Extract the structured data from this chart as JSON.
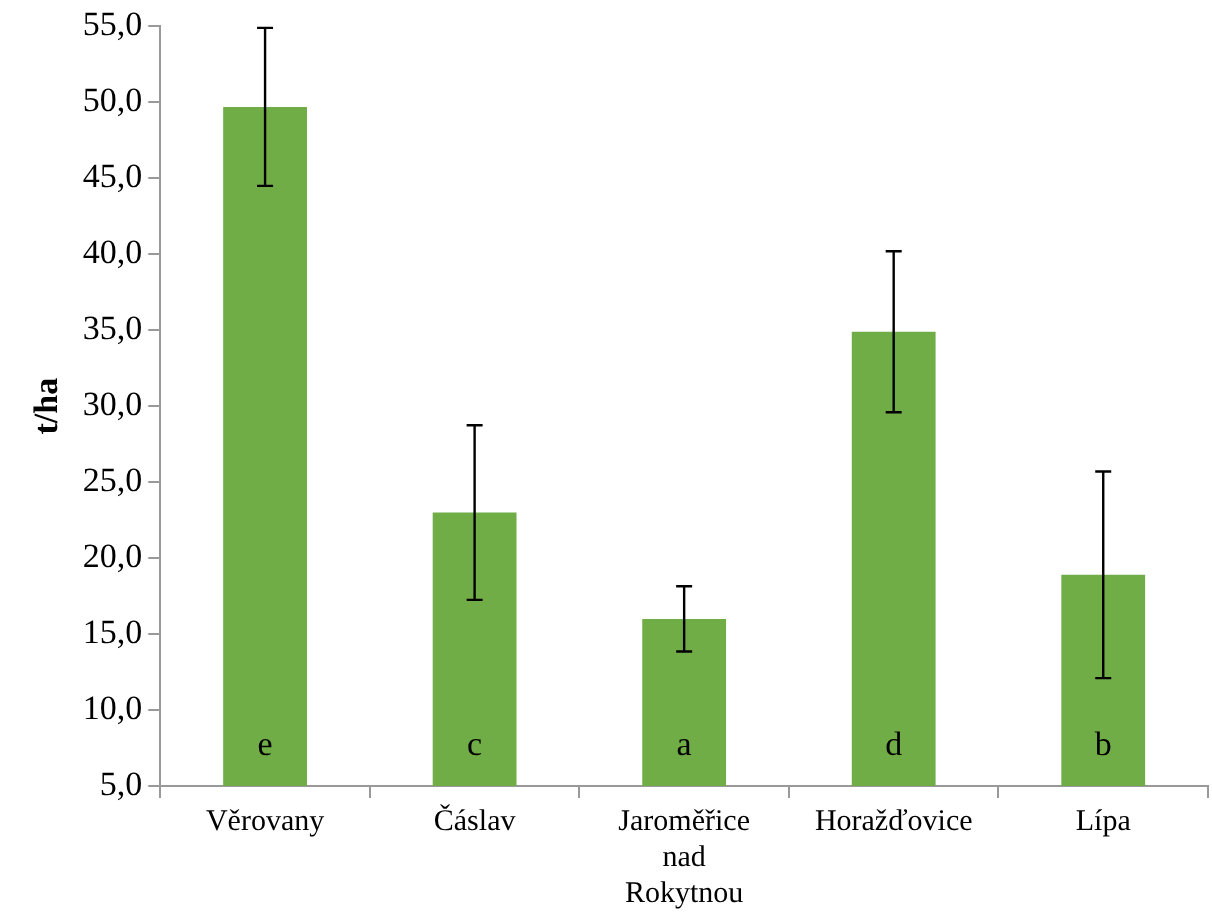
{
  "chart_data": {
    "type": "bar",
    "ylabel": "t/ha",
    "categories": [
      "Věrovany",
      "Čáslav",
      "Jaroměřice nad Rokytnou",
      "Horažďovice",
      "Lípa"
    ],
    "values": [
      49.7,
      23.0,
      16.0,
      34.9,
      18.9
    ],
    "errors": [
      5.2,
      5.75,
      2.15,
      5.3,
      6.8
    ],
    "color": "#70ad47",
    "ylim": [
      5,
      55
    ],
    "yticks": [
      {
        "value": 5,
        "label": "5,0"
      },
      {
        "value": 10,
        "label": "10,0"
      },
      {
        "value": 15,
        "label": "15,0"
      },
      {
        "value": 20,
        "label": "20,0"
      },
      {
        "value": 25,
        "label": "25,0"
      },
      {
        "value": 30,
        "label": "30,0"
      },
      {
        "value": 35,
        "label": "35,0"
      },
      {
        "value": 40,
        "label": "40,0"
      },
      {
        "value": 45,
        "label": "45,0"
      },
      {
        "value": 50,
        "label": "50,0"
      },
      {
        "value": 55,
        "label": "55,0"
      }
    ],
    "annotations": [
      "e",
      "c",
      "a",
      "d",
      "b"
    ]
  }
}
